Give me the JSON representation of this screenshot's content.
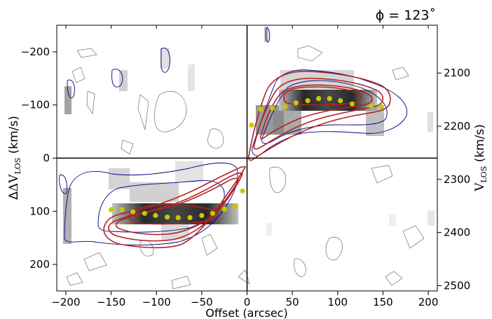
{
  "chart_data": {
    "type": "scatter",
    "title": "ϕ = 123˚",
    "xlabel": "Offset (arcsec)",
    "ylabel_left": "ΔV",
    "ylabel_left_sub": "LOS",
    "ylabel_left_unit": "(km/s)",
    "ylabel_right": "V",
    "ylabel_right_sub": "LOS",
    "ylabel_right_unit": "(km/s)",
    "xlim": [
      -210,
      210
    ],
    "ylim_left": [
      250,
      -250
    ],
    "ylim_right": [
      2510,
      2010
    ],
    "x_ticks": [
      -200,
      -150,
      -100,
      -50,
      0,
      50,
      100,
      150,
      200
    ],
    "x_tick_labels": [
      "−200",
      "−150",
      "−100",
      "−50",
      "0",
      "50",
      "100",
      "150",
      "200"
    ],
    "y_left_ticks": [
      -200,
      -100,
      0,
      100,
      200
    ],
    "y_left_tick_labels": [
      "−200",
      "−100",
      "0",
      "100",
      "200"
    ],
    "y_right_ticks": [
      2100,
      2200,
      2300,
      2400,
      2500
    ],
    "y_right_tick_labels": [
      "2100",
      "2200",
      "2300",
      "2400",
      "2500"
    ],
    "crosshair": {
      "x": 0,
      "y": 0
    },
    "colors": {
      "model_contour": "#b22222",
      "data_contour": "#00008b",
      "noise_contour": "#808080",
      "points": "#c8c800"
    },
    "series": [
      {
        "x": [
          -150,
          -138,
          -126,
          -113,
          -101,
          -88,
          -76,
          -63,
          -50,
          -38,
          -25,
          -13,
          -5
        ],
        "y": [
          97,
          97,
          101,
          104,
          108,
          111,
          112,
          112,
          108,
          104,
          96,
          91,
          62
        ]
      },
      {
        "x": [
          5,
          15,
          28,
          42,
          54,
          67,
          79,
          91,
          103,
          116,
          137,
          148
        ],
        "y": [
          -62,
          -92,
          -94,
          -97,
          -104,
          -108,
          -112,
          -112,
          -108,
          -102,
          -98,
          -97
        ]
      }
    ]
  }
}
